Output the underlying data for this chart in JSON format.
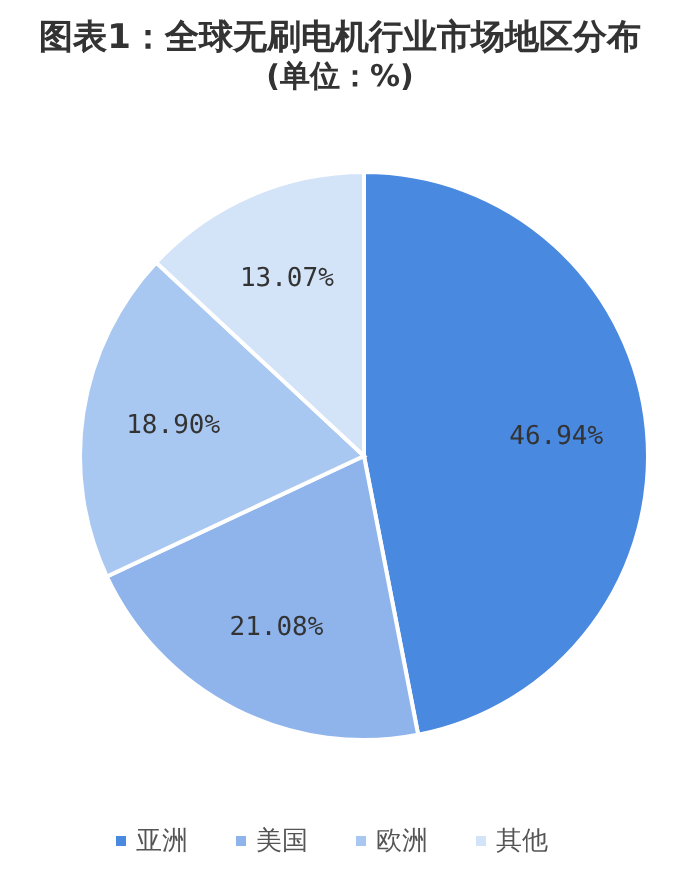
{
  "chart_data": {
    "type": "pie",
    "title": "图表1：全球无刷电机行业市场地区分布",
    "subtitle": "(单位：%)",
    "categories": [
      "亚洲",
      "美国",
      "欧洲",
      "其他"
    ],
    "values": [
      46.94,
      21.08,
      18.9,
      13.07
    ],
    "value_labels": [
      "46.94%",
      "21.08%",
      "18.90%",
      "13.07%"
    ],
    "colors": [
      "#4a89e0",
      "#8fb4ec",
      "#a9c8f1",
      "#d3e3f8"
    ],
    "legend": "bottom"
  }
}
